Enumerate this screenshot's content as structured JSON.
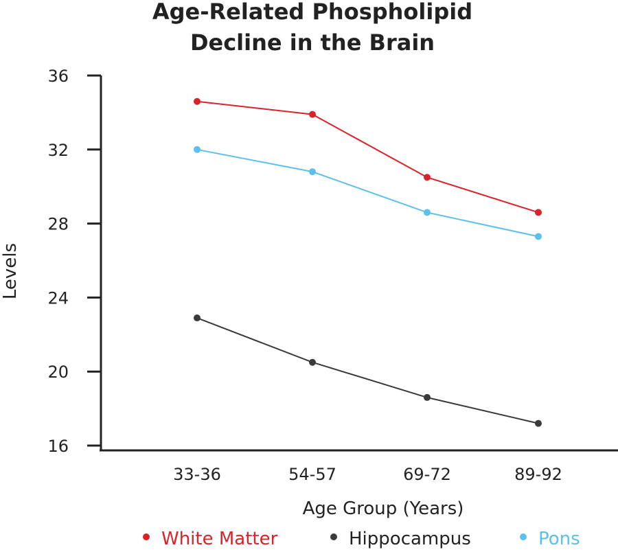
{
  "chart_data": {
    "type": "line",
    "title": "Age-Related Phospholipid\nDecline in the Brain",
    "title_lines": [
      "Age-Related Phospholipid",
      "Decline in the Brain"
    ],
    "xlabel": "Age Group (Years)",
    "ylabel": "Levels",
    "categories": [
      "33-36",
      "54-57",
      "69-72",
      "89-92"
    ],
    "ylim": [
      16,
      36
    ],
    "yticks": [
      16,
      20,
      24,
      28,
      32,
      36
    ],
    "grid": false,
    "legend_position": "bottom",
    "series": [
      {
        "name": "White Matter",
        "color": "#d9222a",
        "values": [
          34.6,
          33.9,
          30.5,
          28.6
        ]
      },
      {
        "name": "Hippocampus",
        "color": "#3a3a3c",
        "values": [
          22.9,
          20.5,
          18.6,
          17.2
        ]
      },
      {
        "name": "Pons",
        "color": "#5bc0eb",
        "values": [
          32.0,
          30.8,
          28.6,
          27.3
        ]
      }
    ]
  }
}
